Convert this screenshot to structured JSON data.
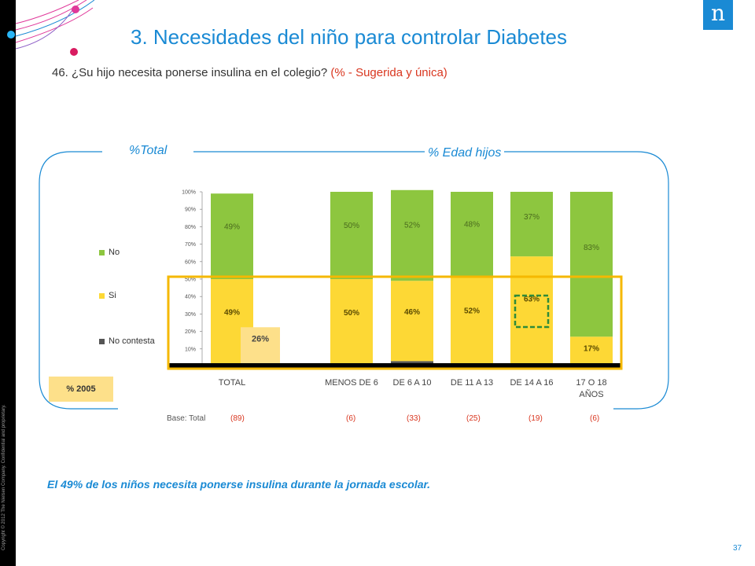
{
  "header": {
    "title": "3. Necesidades del niño para controlar Diabetes",
    "question_main": "46. ¿Su hijo necesita ponerse insulina en el colegio?",
    "question_note": "(% - Sugerida y única)",
    "logo_text": "n"
  },
  "panels": {
    "total_label": "%Total",
    "age_label": "% Edad hijos"
  },
  "legend": [
    {
      "name": "No",
      "color": "#8dc63f"
    },
    {
      "name": "Si",
      "color": "#fdd835"
    },
    {
      "name": "No contesta",
      "color": "#555555"
    }
  ],
  "badge_2005": "% 2005",
  "base": {
    "label": "Base: Total",
    "values": [
      "(89)",
      "(6)",
      "(33)",
      "(25)",
      "(19)",
      "(6)"
    ]
  },
  "finding": "El 49% de los niños necesita ponerse insulina durante la jornada escolar.",
  "page_number": "37",
  "copyright": "Copyright © 2012 The Nielsen Company. Confidential and proprietary.",
  "colors": {
    "accent": "#1a8ad4",
    "no": "#8dc63f",
    "si": "#fdd835",
    "no_contesta": "#555555",
    "highlight_box": "#f5b800",
    "highlight_dashed": "#2e8b3a",
    "value_2005": "#fde08a"
  },
  "chart_data": {
    "type": "bar",
    "stacked": true,
    "categories": [
      "TOTAL",
      "MENOS DE 6",
      "DE 6 A 10",
      "DE 11 A 13",
      "DE 14 A 16",
      "17 O 18 AÑOS"
    ],
    "series": [
      {
        "name": "No contesta",
        "values": [
          1,
          0,
          3,
          0,
          0,
          0
        ],
        "labels": [
          "1%",
          "",
          "3%",
          "",
          "",
          ""
        ]
      },
      {
        "name": "Si",
        "values": [
          49,
          50,
          46,
          52,
          63,
          17
        ],
        "labels": [
          "49%",
          "50%",
          "46%",
          "52%",
          "63%",
          "17%"
        ]
      },
      {
        "name": "No",
        "values": [
          49,
          50,
          52,
          48,
          37,
          83
        ],
        "labels": [
          "49%",
          "50%",
          "52%",
          "48%",
          "37%",
          "83%"
        ]
      }
    ],
    "comparison_2005": {
      "category": "TOTAL",
      "value": 26,
      "label": "26%"
    },
    "highlighted_value": {
      "category": "DE 14 A 16",
      "label": "63%"
    },
    "yticks": [
      "0%",
      "10%",
      "20%",
      "30%",
      "40%",
      "50%",
      "60%",
      "70%",
      "80%",
      "90%",
      "100%"
    ],
    "ylim": [
      0,
      100
    ]
  }
}
